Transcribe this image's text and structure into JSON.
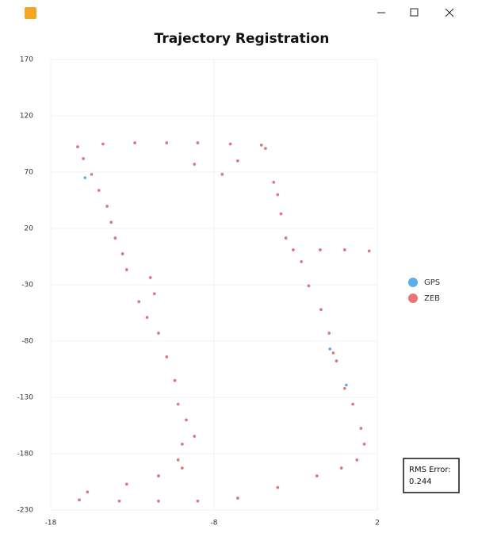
{
  "chart_data": {
    "type": "scatter",
    "title": "Trajectory Registration",
    "xlim": [
      -18,
      2
    ],
    "ylim": [
      -230,
      170
    ],
    "xticks": [
      -18,
      -8,
      2
    ],
    "yticks": [
      170,
      120,
      70,
      20,
      -30,
      -80,
      -130,
      -180,
      -230
    ],
    "grid": true,
    "legend": "right",
    "annotation": {
      "label": "RMS Error:",
      "value": 0.244
    },
    "series": [
      {
        "name": "GPS",
        "color": "#5aaeea",
        "x": [
          -16.35,
          -14.8,
          -12.85,
          -10.9,
          -9.0,
          -7.0,
          -5.1,
          -4.85,
          -6.55,
          -9.2,
          -7.5,
          -4.35,
          -4.1,
          -3.9,
          -3.6,
          -3.15,
          -1.5,
          0,
          1.5,
          -2.65,
          -2.2,
          -1.45,
          -0.95,
          -0.9,
          -0.5,
          0.1,
          0.5,
          1.0,
          1.2,
          0.75,
          -0.2,
          -1.7,
          -4.1,
          -6.55,
          -9.0,
          -11.4,
          -13.8,
          -16.25,
          -15.75,
          -13.35,
          -11.4,
          -9.95,
          -10.2,
          -9.95,
          -9.2,
          -9.7,
          -10.2,
          -10.4,
          -10.9,
          -11.4,
          -12.1,
          -12.6,
          -11.65,
          -11.9,
          -13.35,
          -13.6,
          -14.05,
          -14.3,
          -14.55,
          -15.05,
          -15.9,
          -16.0
        ],
        "y": [
          92.5,
          95,
          96,
          96,
          96,
          95,
          94,
          91,
          80,
          77,
          68,
          61,
          50,
          33,
          11.5,
          1,
          1,
          1,
          0,
          -9.5,
          -31,
          -52,
          -73,
          -87,
          -97.6,
          -119,
          -136,
          -157.5,
          -171.5,
          -185.5,
          -192.7,
          -199.7,
          -210,
          -219.4,
          -222,
          -222,
          -222,
          -221,
          -214,
          -207,
          -199.7,
          -192.7,
          -185.5,
          -171.5,
          -164.5,
          -150,
          -136,
          -115,
          -94,
          -73,
          -59,
          -45,
          -38,
          -23.6,
          -16.6,
          -2.5,
          11.5,
          25.5,
          39.7,
          53.8,
          65,
          82
        ]
      },
      {
        "name": "ZEB",
        "color": "#e87474",
        "x": [
          -16.35,
          -14.8,
          -12.85,
          -10.9,
          -9.0,
          -7.0,
          -5.1,
          -4.85,
          -6.55,
          -9.2,
          -7.5,
          -4.35,
          -4.1,
          -3.9,
          -3.6,
          -3.15,
          -1.5,
          0,
          1.5,
          -2.65,
          -2.2,
          -1.45,
          -0.95,
          -0.7,
          -0.5,
          0,
          0.5,
          1.0,
          1.2,
          0.75,
          -0.2,
          -1.7,
          -4.1,
          -6.55,
          -9.0,
          -11.4,
          -13.8,
          -16.25,
          -15.75,
          -13.35,
          -11.4,
          -9.95,
          -10.2,
          -9.95,
          -9.2,
          -9.7,
          -10.2,
          -10.4,
          -10.9,
          -11.4,
          -12.1,
          -12.6,
          -11.65,
          -11.9,
          -13.35,
          -13.6,
          -14.05,
          -14.3,
          -14.55,
          -15.05,
          -15.5,
          -16.0
        ],
        "y": [
          92.5,
          95,
          96,
          96,
          96,
          95,
          94,
          91,
          80,
          77,
          68,
          61,
          50,
          33,
          11.5,
          1,
          1,
          1,
          0,
          -9.5,
          -31,
          -52,
          -73,
          -90.5,
          -97.6,
          -122,
          -136,
          -157.5,
          -171.5,
          -185.5,
          -192.7,
          -199.7,
          -210,
          -219.4,
          -222,
          -222,
          -222,
          -221,
          -214,
          -207,
          -199.7,
          -192.7,
          -185.5,
          -171.5,
          -164.5,
          -150,
          -136,
          -115,
          -94,
          -73,
          -59,
          -45,
          -38,
          -23.6,
          -16.6,
          -2.5,
          11.5,
          25.5,
          39.7,
          53.8,
          68,
          82
        ]
      }
    ]
  }
}
